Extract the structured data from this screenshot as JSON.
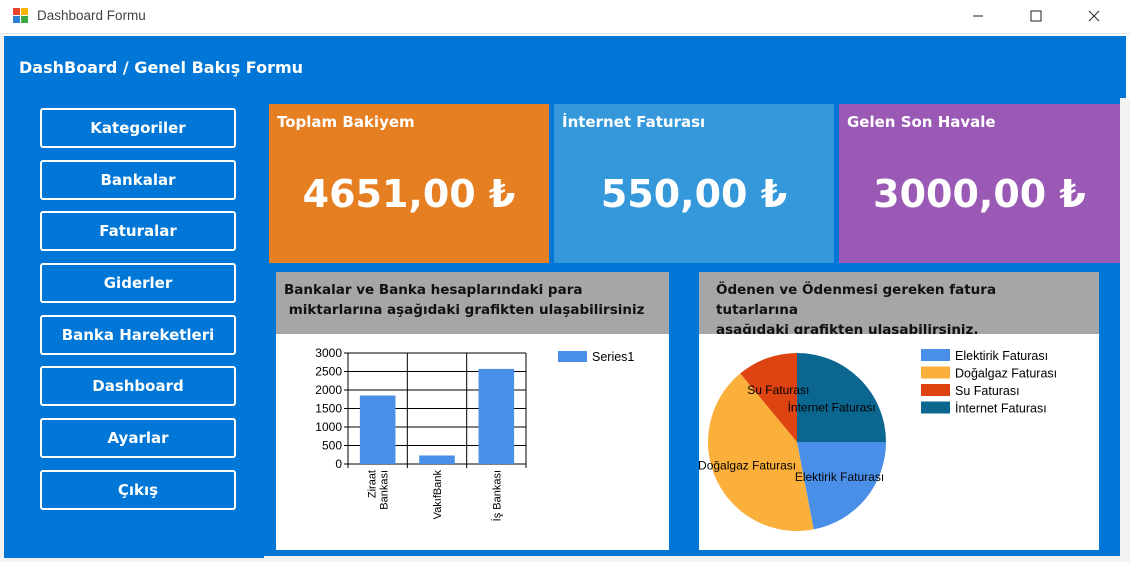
{
  "window": {
    "title": "Dashboard Formu"
  },
  "header": {
    "title": "DashBoard / Genel Bakış Formu"
  },
  "sidebar": {
    "items": [
      {
        "label": "Kategoriler"
      },
      {
        "label": "Bankalar"
      },
      {
        "label": "Faturalar"
      },
      {
        "label": "Giderler"
      },
      {
        "label": "Banka Hareketleri"
      },
      {
        "label": "Dashboard"
      },
      {
        "label": "Ayarlar"
      },
      {
        "label": "Çıkış"
      }
    ]
  },
  "cards": [
    {
      "title": "Toplam Bakiyem",
      "value": "4651,00 ₺",
      "color": "#e67e22"
    },
    {
      "title": "İnternet Faturası",
      "value": "550,00 ₺",
      "color": "#3498db"
    },
    {
      "title": "Gelen Son Havale",
      "value": "3000,00 ₺",
      "color": "#9b59b6"
    }
  ],
  "bank_panel": {
    "heading_line1": "Bankalar ve Banka hesaplarındaki para",
    "heading_line2": " miktarlarına aşağıdaki grafikten ulaşabilirsiniz"
  },
  "bill_panel": {
    "heading_line1": "Ödenen ve Ödenmesi gereken fatura tutarlarına",
    "heading_line2": "aşağıdaki grafikten ulaşabilirsiniz."
  },
  "chart_data": [
    {
      "type": "bar",
      "categories": [
        "Ziraat Bankası",
        "VakıfBank",
        "İş Bankası"
      ],
      "category_lines": [
        [
          "Ziraat",
          "Bankası"
        ],
        [
          "VakıfBank"
        ],
        [
          "İş Bankası"
        ]
      ],
      "series": [
        {
          "name": "Series1",
          "values": [
            1850,
            230,
            2570
          ],
          "color": "#4a8fe7"
        }
      ],
      "yticks": [
        0,
        500,
        1000,
        1500,
        2000,
        2500,
        3000
      ],
      "ylim": [
        0,
        3000
      ],
      "grid": true,
      "legend": "top-right"
    },
    {
      "type": "pie",
      "slices": [
        {
          "label": "Elektirik Faturası",
          "value": 22,
          "color": "#4a8fe7"
        },
        {
          "label": "Doğalgaz Faturası",
          "value": 42,
          "color": "#fbb03b"
        },
        {
          "label": "Su Faturası",
          "value": 11,
          "color": "#dd4411"
        },
        {
          "label": "İnternet Faturası",
          "value": 25,
          "color": "#0b6690"
        }
      ],
      "legend": "right"
    }
  ]
}
